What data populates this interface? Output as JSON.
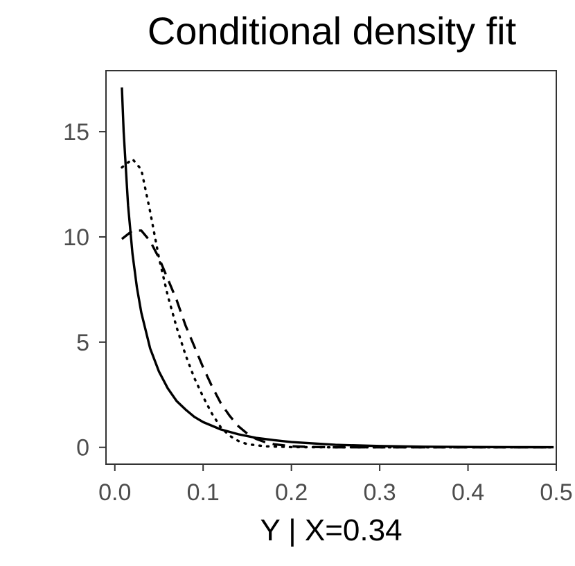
{
  "chart_data": {
    "type": "line",
    "title": "Conditional density fit",
    "xlabel": "Y | X=0.34",
    "ylabel": "",
    "xlim": [
      -0.01,
      0.5
    ],
    "ylim": [
      -0.8,
      17.9
    ],
    "x_ticks": [
      "0.0",
      "0.1",
      "0.2",
      "0.3",
      "0.4",
      "0.5"
    ],
    "y_ticks": [
      "0",
      "5",
      "10",
      "15"
    ],
    "grid": false,
    "legend": "none",
    "series": [
      {
        "linetype": "solid",
        "points": [
          [
            0.008,
            17.1
          ],
          [
            0.01,
            15.0
          ],
          [
            0.015,
            11.5
          ],
          [
            0.02,
            9.2
          ],
          [
            0.025,
            7.6
          ],
          [
            0.03,
            6.4
          ],
          [
            0.04,
            4.7
          ],
          [
            0.05,
            3.6
          ],
          [
            0.06,
            2.8
          ],
          [
            0.07,
            2.2
          ],
          [
            0.08,
            1.8
          ],
          [
            0.09,
            1.45
          ],
          [
            0.1,
            1.2
          ],
          [
            0.12,
            0.85
          ],
          [
            0.14,
            0.62
          ],
          [
            0.16,
            0.45
          ],
          [
            0.18,
            0.34
          ],
          [
            0.2,
            0.25
          ],
          [
            0.25,
            0.12
          ],
          [
            0.3,
            0.06
          ],
          [
            0.35,
            0.03
          ],
          [
            0.4,
            0.015
          ],
          [
            0.45,
            0.008
          ],
          [
            0.497,
            0.004
          ]
        ]
      },
      {
        "linetype": "dotted",
        "points": [
          [
            0.008,
            13.3
          ],
          [
            0.02,
            13.7
          ],
          [
            0.03,
            13.2
          ],
          [
            0.04,
            11.2
          ],
          [
            0.05,
            9.0
          ],
          [
            0.06,
            7.2
          ],
          [
            0.07,
            5.7
          ],
          [
            0.08,
            4.4
          ],
          [
            0.09,
            3.3
          ],
          [
            0.1,
            2.4
          ],
          [
            0.11,
            1.6
          ],
          [
            0.12,
            0.95
          ],
          [
            0.13,
            0.55
          ],
          [
            0.14,
            0.3
          ],
          [
            0.15,
            0.15
          ],
          [
            0.17,
            0.05
          ],
          [
            0.2,
            0.01
          ],
          [
            0.25,
            0.0
          ],
          [
            0.3,
            0.0
          ],
          [
            0.4,
            0.0
          ],
          [
            0.497,
            0.0
          ]
        ]
      },
      {
        "linetype": "dashed",
        "points": [
          [
            0.008,
            9.9
          ],
          [
            0.02,
            10.3
          ],
          [
            0.03,
            10.3
          ],
          [
            0.04,
            9.8
          ],
          [
            0.05,
            9.0
          ],
          [
            0.06,
            8.0
          ],
          [
            0.07,
            7.0
          ],
          [
            0.08,
            5.8
          ],
          [
            0.09,
            4.8
          ],
          [
            0.1,
            3.8
          ],
          [
            0.11,
            2.9
          ],
          [
            0.12,
            2.1
          ],
          [
            0.13,
            1.5
          ],
          [
            0.14,
            1.0
          ],
          [
            0.15,
            0.65
          ],
          [
            0.16,
            0.4
          ],
          [
            0.17,
            0.25
          ],
          [
            0.18,
            0.15
          ],
          [
            0.2,
            0.05
          ],
          [
            0.22,
            0.02
          ],
          [
            0.25,
            0.0
          ],
          [
            0.3,
            0.0
          ],
          [
            0.4,
            0.0
          ],
          [
            0.497,
            0.0
          ]
        ]
      }
    ]
  }
}
